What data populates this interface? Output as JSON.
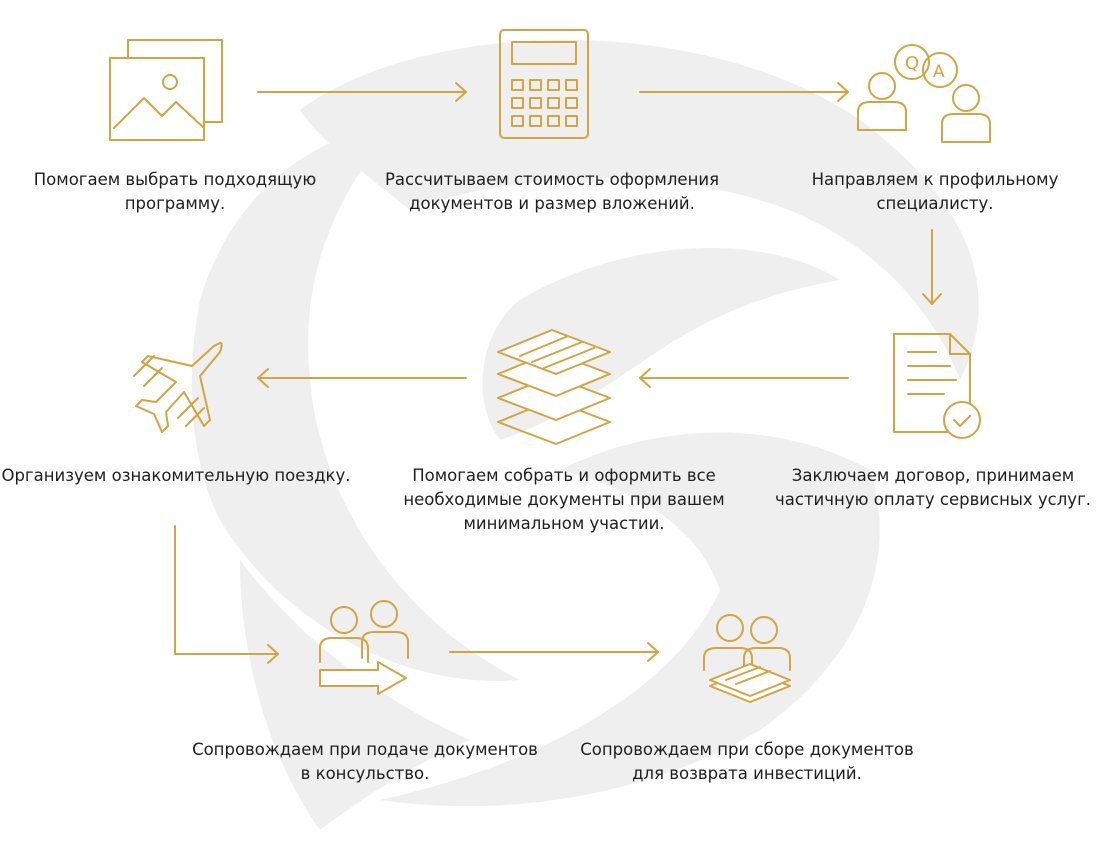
{
  "accent_color": "#d2a444",
  "watermark_color": "#eeeeee",
  "steps": [
    {
      "icon": "images-icon",
      "text": "Помогаем выбрать подходящую\nпрограмму."
    },
    {
      "icon": "calculator-icon",
      "text": "Рассчитываем стоимость оформления\nдокументов и размер вложений."
    },
    {
      "icon": "consultation-qa-icon",
      "text": "Направляем к профильному\nспециалисту."
    },
    {
      "icon": "contract-document-icon",
      "text": "Заключаем договор, принимаем\nчастичную оплату сервисных услуг."
    },
    {
      "icon": "document-stack-icon",
      "text": "Помогаем собрать и оформить все\nнеобходимые документы при вашем\nминимальном участии."
    },
    {
      "icon": "airplane-icon",
      "text": "Организуем ознакомительную поездку."
    },
    {
      "icon": "people-submit-arrow-icon",
      "text": "Сопровождаем при подаче документов\nв консульство."
    },
    {
      "icon": "people-documents-icon",
      "text": "Сопровождаем при сборе документов\nдля возврата инвестиций."
    }
  ]
}
